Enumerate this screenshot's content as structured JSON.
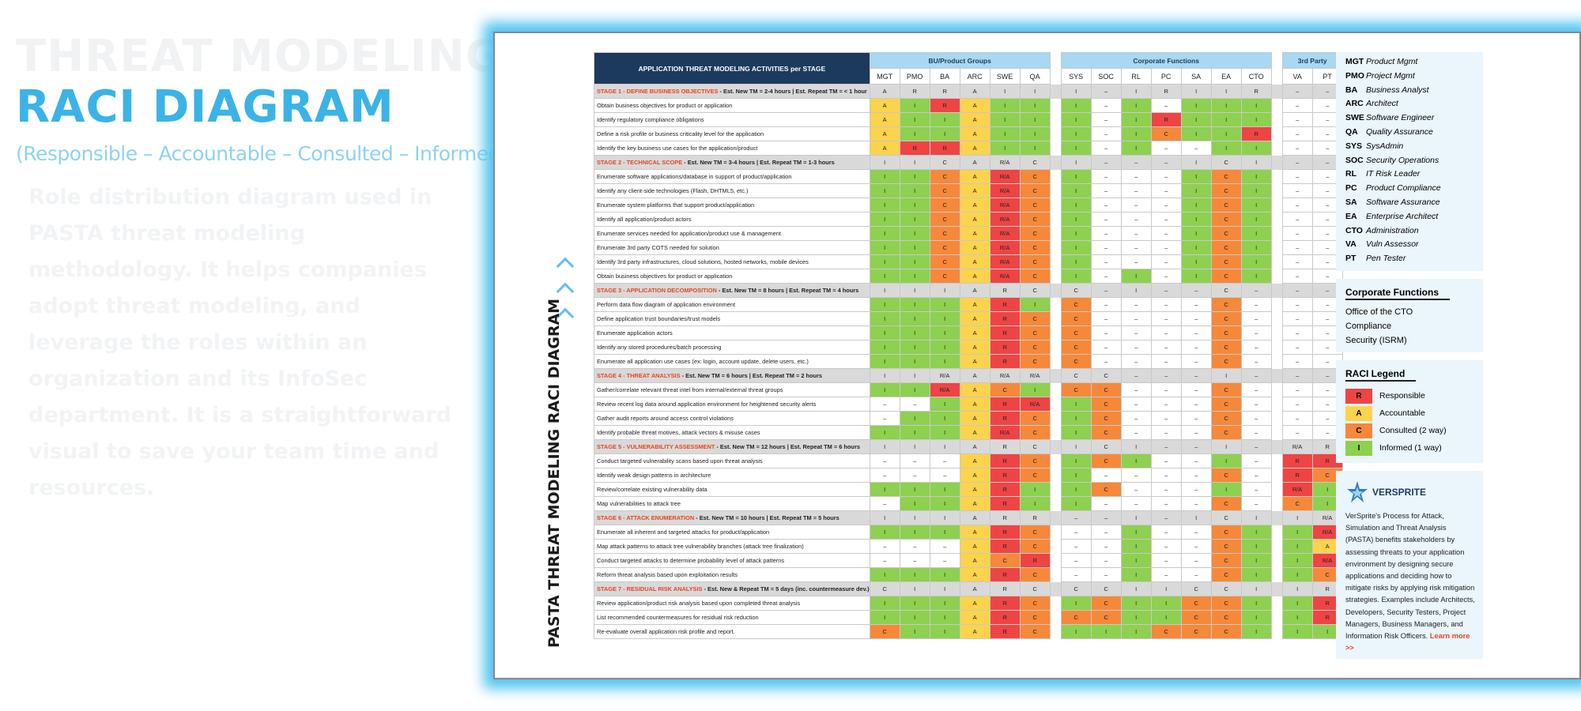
{
  "title_line1": "THREAT MODELING",
  "title_line2": "RACI DIAGRAM",
  "subtitle": "(Responsible – Accountable – Consulted – Informed)",
  "description": "Role distribution diagram used in PASTA threat modeling methodology. It helps companies adopt threat modeling, and leverage the roles within an organization and its InfoSec department. It is a straightforward visual to save your team time and resources.",
  "vertical_title": "PASTA THREAT MODELING RACI DIAGRAM",
  "colors": {
    "R": "#ef4444",
    "A": "#fbd34c",
    "C": "#f6883a",
    "I": "#8ed04f",
    "header": "#1c3a5e",
    "group": "#a8d8f2",
    "accent": "#3bb3e6",
    "glow": "#50c4f0"
  },
  "table": {
    "header_title": "APPLICATION THREAT MODELING ACTIVITIES per STAGE",
    "groups": [
      "BU/Product Groups",
      "Corporate Functions",
      "3rd Party"
    ],
    "columns": [
      [
        "MGT",
        "PMO",
        "BA",
        "ARC",
        "SWE",
        "QA"
      ],
      [
        "SYS",
        "SOC",
        "RL",
        "PC",
        "SA",
        "EA",
        "CTO"
      ],
      [
        "VA",
        "PT"
      ]
    ],
    "rows": [
      {
        "stage": true,
        "name": "STAGE 1 - DEFINE BUSINESS OBJECTIVES",
        "est": " - Est. New TM = 2-4 hours   |   Est. Repeat TM = < 1 hour",
        "v": [
          "A",
          "R",
          "R",
          "A",
          "I",
          "I",
          "I",
          "–",
          "I",
          "R",
          "I",
          "I",
          "R",
          "–",
          "–"
        ]
      },
      {
        "a": "Obtain business objectives for product or application",
        "v": [
          "A",
          "I",
          "R",
          "A",
          "I",
          "I",
          "I",
          "–",
          "I",
          "–",
          "I",
          "I",
          "I",
          "–",
          "–"
        ]
      },
      {
        "a": "Identify regulatory compliance obligations",
        "v": [
          "A",
          "I",
          "I",
          "A",
          "I",
          "I",
          "I",
          "–",
          "I",
          "R",
          "I",
          "I",
          "I",
          "–",
          "–"
        ]
      },
      {
        "a": "Define a risk profile or business criticality level for the application",
        "v": [
          "A",
          "I",
          "I",
          "A",
          "I",
          "I",
          "I",
          "–",
          "I",
          "C",
          "I",
          "I",
          "R",
          "–",
          "–"
        ]
      },
      {
        "a": "Identify the key business use cases for the application/product",
        "v": [
          "A",
          "R",
          "R",
          "A",
          "I",
          "I",
          "I",
          "–",
          "I",
          "–",
          "–",
          "I",
          "I",
          "–",
          "–"
        ]
      },
      {
        "stage": true,
        "name": "STAGE 2 - TECHNICAL SCOPE",
        "est": " - Est. New TM = 3-4 hours   |   Est. Repeat TM = 1-3 hours",
        "v": [
          "I",
          "I",
          "C",
          "A",
          "R/A",
          "C",
          "I",
          "–",
          "–",
          "–",
          "I",
          "C",
          "I",
          "–",
          "–"
        ]
      },
      {
        "a": "Enumerate software applications/database in support of product/application",
        "v": [
          "I",
          "I",
          "C",
          "A",
          "R/A",
          "C",
          "I",
          "–",
          "–",
          "–",
          "I",
          "C",
          "I",
          "–",
          "–"
        ]
      },
      {
        "a": "Identify any client-side technologies (Flash, DHTML5, etc.)",
        "v": [
          "I",
          "I",
          "C",
          "A",
          "R/A",
          "C",
          "I",
          "–",
          "–",
          "–",
          "I",
          "C",
          "I",
          "–",
          "–"
        ]
      },
      {
        "a": "Enumerate system platforms that support product/application",
        "v": [
          "I",
          "I",
          "C",
          "A",
          "R/A",
          "C",
          "I",
          "–",
          "–",
          "–",
          "I",
          "C",
          "I",
          "–",
          "–"
        ]
      },
      {
        "a": "Identify all application/product actors",
        "v": [
          "I",
          "I",
          "C",
          "A",
          "R/A",
          "C",
          "I",
          "–",
          "–",
          "–",
          "I",
          "C",
          "I",
          "–",
          "–"
        ]
      },
      {
        "a": "Enumerate services needed for application/product use & management",
        "v": [
          "I",
          "I",
          "C",
          "A",
          "R/A",
          "C",
          "I",
          "–",
          "–",
          "–",
          "I",
          "C",
          "I",
          "–",
          "–"
        ]
      },
      {
        "a": "Enumerate 3rd party COTS needed for solution",
        "v": [
          "I",
          "I",
          "C",
          "A",
          "R/A",
          "C",
          "I",
          "–",
          "–",
          "–",
          "I",
          "C",
          "I",
          "–",
          "–"
        ]
      },
      {
        "a": "Identify 3rd party infrastructures, cloud solutions, hosted networks, mobile devices",
        "v": [
          "I",
          "I",
          "C",
          "A",
          "R/A",
          "C",
          "I",
          "–",
          "–",
          "–",
          "I",
          "C",
          "I",
          "–",
          "–"
        ]
      },
      {
        "a": "Obtain business objectives for product or application",
        "v": [
          "I",
          "I",
          "C",
          "A",
          "R/A",
          "C",
          "I",
          "–",
          "I",
          "–",
          "I",
          "C",
          "I",
          "–",
          "–"
        ]
      },
      {
        "stage": true,
        "name": "STAGE 3 - APPLICATION DECOMPOSITION",
        "est": " - Est. New TM = 8 hours   |   Est. Repeat TM = 4 hours",
        "v": [
          "I",
          "I",
          "I",
          "A",
          "R",
          "C",
          "C",
          "–",
          "I",
          "–",
          "–",
          "C",
          "–",
          "–",
          "–"
        ]
      },
      {
        "a": "Perform data flow diagram of application environment",
        "v": [
          "I",
          "I",
          "I",
          "A",
          "R",
          "I",
          "C",
          "–",
          "–",
          "–",
          "–",
          "C",
          "–",
          "–",
          "–"
        ]
      },
      {
        "a": "Define application trust boundaries/trust models",
        "v": [
          "I",
          "I",
          "I",
          "A",
          "R",
          "C",
          "C",
          "–",
          "–",
          "–",
          "–",
          "C",
          "–",
          "–",
          "–"
        ]
      },
      {
        "a": "Enumerate application actors",
        "v": [
          "I",
          "I",
          "I",
          "A",
          "R",
          "C",
          "C",
          "–",
          "–",
          "–",
          "–",
          "C",
          "–",
          "–",
          "–"
        ]
      },
      {
        "a": "Identify any stored procedures/batch processing",
        "v": [
          "I",
          "I",
          "I",
          "A",
          "R",
          "C",
          "C",
          "–",
          "–",
          "–",
          "–",
          "C",
          "–",
          "–",
          "–"
        ]
      },
      {
        "a": "Enumerate all application use cases (ex: login, account update, delete users, etc.)",
        "v": [
          "I",
          "I",
          "I",
          "A",
          "R",
          "C",
          "C",
          "–",
          "–",
          "–",
          "–",
          "C",
          "–",
          "–",
          "–"
        ]
      },
      {
        "stage": true,
        "name": "STAGE 4 - THREAT ANALYSIS",
        "est": " - Est. New TM = 6 hours   |   Est. Repeat TM = 2 hours",
        "v": [
          "I",
          "I",
          "R/A",
          "A",
          "R/A",
          "R/A",
          "C",
          "C",
          "–",
          "–",
          "–",
          "I",
          "–",
          "–",
          "–"
        ]
      },
      {
        "a": "Gather/correlate relevant threat intel from internal/external threat groups",
        "v": [
          "I",
          "I",
          "R/A",
          "A",
          "C",
          "I",
          "C",
          "C",
          "–",
          "–",
          "–",
          "C",
          "–",
          "–",
          "–"
        ]
      },
      {
        "a": "Review recent log data around application environment for heightened security alerts",
        "v": [
          "–",
          "–",
          "I",
          "A",
          "R",
          "R/A",
          "I",
          "C",
          "–",
          "–",
          "–",
          "C",
          "–",
          "–",
          "–"
        ]
      },
      {
        "a": "Gather audit reports around access control violations",
        "v": [
          "–",
          "I",
          "I",
          "A",
          "R",
          "C",
          "I",
          "C",
          "–",
          "–",
          "–",
          "C",
          "–",
          "–",
          "–"
        ]
      },
      {
        "a": "Identify probable threat motives, attack vectors & misuse cases",
        "v": [
          "I",
          "I",
          "I",
          "A",
          "R/A",
          "C",
          "I",
          "C",
          "–",
          "–",
          "–",
          "C",
          "–",
          "–",
          "–"
        ]
      },
      {
        "stage": true,
        "name": "STAGE 5 - VULNERABILITY ASSESSMENT",
        "est": " - Est. New TM = 12 hours   |   Est. Repeat TM = 6 hours",
        "v": [
          "I",
          "I",
          "I",
          "A",
          "R",
          "C",
          "I",
          "C",
          "I",
          "–",
          "–",
          "I",
          "–",
          "R/A",
          "R"
        ]
      },
      {
        "a": "Conduct targeted vulnerability scans based upon threat analysis",
        "v": [
          "–",
          "–",
          "–",
          "A",
          "R",
          "C",
          "I",
          "C",
          "I",
          "–",
          "–",
          "I",
          "–",
          "R",
          "R"
        ]
      },
      {
        "a": "Identify weak design patterns in architecture",
        "v": [
          "–",
          "–",
          "–",
          "A",
          "R",
          "C",
          "I",
          "–",
          "–",
          "–",
          "–",
          "C",
          "–",
          "R",
          "C"
        ]
      },
      {
        "a": "Review/correlate existing vulnerability data",
        "v": [
          "I",
          "I",
          "I",
          "A",
          "R",
          "I",
          "I",
          "C",
          "–",
          "–",
          "–",
          "I",
          "–",
          "R/A",
          "I"
        ]
      },
      {
        "a": "Map vulnerabilities to attack tree",
        "v": [
          "–",
          "I",
          "I",
          "A",
          "R",
          "I",
          "I",
          "–",
          "–",
          "–",
          "–",
          "C",
          "–",
          "C",
          "I"
        ]
      },
      {
        "stage": true,
        "name": "STAGE 6 - ATTACK ENUMERATION",
        "est": " - Est. New TM = 10 hours   |   Est. Repeat TM = 5 hours",
        "v": [
          "I",
          "I",
          "I",
          "A",
          "R",
          "R",
          "–",
          "–",
          "I",
          "–",
          "I",
          "C",
          "I",
          "I",
          "R/A"
        ]
      },
      {
        "a": "Enumerate all inherent and targeted attacks for product/application",
        "v": [
          "I",
          "I",
          "I",
          "A",
          "R",
          "C",
          "–",
          "–",
          "I",
          "–",
          "–",
          "C",
          "I",
          "I",
          "R/A"
        ]
      },
      {
        "a": "Map attack patterns to attack tree vulnerability branches (attack tree finalization)",
        "v": [
          "–",
          "–",
          "–",
          "A",
          "R",
          "C",
          "–",
          "–",
          "I",
          "–",
          "–",
          "C",
          "I",
          "I",
          "A"
        ]
      },
      {
        "a": "Conduct targeted attacks to determine probability level of attack patterns",
        "v": [
          "–",
          "–",
          "–",
          "A",
          "C",
          "R",
          "–",
          "–",
          "I",
          "–",
          "–",
          "C",
          "I",
          "I",
          "R/A"
        ]
      },
      {
        "a": "Reform threat analysis based upon exploitation results",
        "v": [
          "I",
          "I",
          "I",
          "A",
          "R",
          "C",
          "–",
          "–",
          "I",
          "–",
          "–",
          "C",
          "I",
          "I",
          "C"
        ]
      },
      {
        "stage": true,
        "name": "STAGE 7 - RESIDUAL RISK ANALYSIS",
        "est": " - Est. New & Repeat TM = 5 days (inc. countermeasure dev.)",
        "v": [
          "C",
          "I",
          "I",
          "A",
          "R",
          "C",
          "C",
          "C",
          "I",
          "I",
          "C",
          "C",
          "I",
          "I",
          "R"
        ]
      },
      {
        "a": "Review application/product risk analysis based upon completed threat analysis",
        "v": [
          "I",
          "I",
          "I",
          "A",
          "R",
          "C",
          "I",
          "C",
          "I",
          "I",
          "C",
          "C",
          "I",
          "I",
          "R"
        ]
      },
      {
        "a": "List recommended countermeasures for residual risk reduction",
        "v": [
          "I",
          "I",
          "I",
          "A",
          "R",
          "C",
          "C",
          "C",
          "I",
          "I",
          "C",
          "C",
          "I",
          "I",
          "R"
        ]
      },
      {
        "a": "Re-evaluate overall application risk profile and report.",
        "v": [
          "C",
          "I",
          "I",
          "A",
          "R",
          "C",
          "I",
          "I",
          "I",
          "C",
          "C",
          "C",
          "I",
          "I",
          "I"
        ]
      }
    ]
  },
  "roles": [
    {
      "code": "MGT",
      "name": "Product Mgmt"
    },
    {
      "code": "PMO",
      "name": "Project Mgmt"
    },
    {
      "code": "BA",
      "name": "Business Analyst"
    },
    {
      "code": "ARC",
      "name": "Architect"
    },
    {
      "code": "SWE",
      "name": "Software Engineer"
    },
    {
      "code": "QA",
      "name": "Quality Assurance"
    },
    {
      "code": "SYS",
      "name": "SysAdmin"
    },
    {
      "code": "SOC",
      "name": "Security Operations"
    },
    {
      "code": "RL",
      "name": "IT Risk Leader"
    },
    {
      "code": "PC",
      "name": "Product Compliance"
    },
    {
      "code": "SA",
      "name": "Software Assurance"
    },
    {
      "code": "EA",
      "name": "Enterprise Architect"
    },
    {
      "code": "CTO",
      "name": "Administration"
    },
    {
      "code": "VA",
      "name": "Vuln Assessor"
    },
    {
      "code": "PT",
      "name": "Pen Tester"
    }
  ],
  "corporate": {
    "title": "Corporate Functions",
    "items": [
      "Office of the CTO",
      "Compliance",
      "Security (ISRM)"
    ]
  },
  "legend": {
    "title": "RACI Legend",
    "items": [
      {
        "code": "R",
        "label": "Responsible"
      },
      {
        "code": "A",
        "label": "Accountable"
      },
      {
        "code": "C",
        "label": "Consulted (2 way)"
      },
      {
        "code": "I",
        "label": "Informed (1 way)"
      }
    ]
  },
  "brand": {
    "name": "VERSPRITE",
    "blurb": "VerSprite's Process for Attack, Simulation and Threat Analysis (PASTA) benefits stakeholders by assessing threats to your application environment by designing secure applications and deciding how to mitigate risks by applying risk mitigation strategies. Examples include Architects, Developers, Security Testers, Project Managers, Business Managers, and Information Risk Officers.",
    "more": "Learn more >>"
  }
}
